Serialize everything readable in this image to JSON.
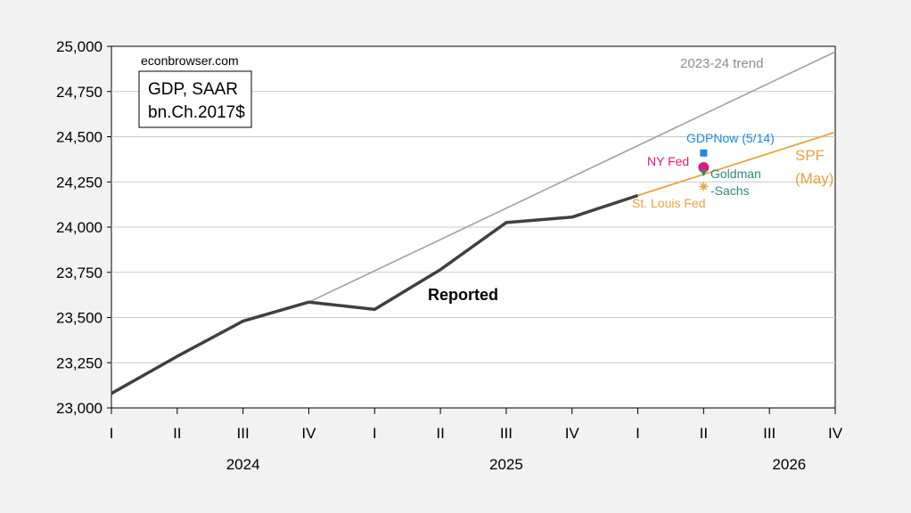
{
  "chart_data": {
    "type": "line",
    "source_note": "econbrowser.com",
    "legend_box": {
      "line1": "GDP, SAAR",
      "line2": "bn.Ch.2017$"
    },
    "ylim": [
      23000,
      25000
    ],
    "y_ticks": [
      23000,
      23250,
      23500,
      23750,
      24000,
      24250,
      24500,
      24750,
      25000
    ],
    "y_tick_labels": [
      "23,000",
      "23,250",
      "23,500",
      "23,750",
      "24,000",
      "24,250",
      "24,500",
      "24,750",
      "25,000"
    ],
    "x_ticks": [
      "I",
      "II",
      "III",
      "IV",
      "I",
      "II",
      "III",
      "IV",
      "I",
      "II",
      "III",
      "IV"
    ],
    "years": [
      {
        "label": "2024",
        "center": 2.0
      },
      {
        "label": "2025",
        "center": 6.0
      },
      {
        "label": "2026",
        "center": 10.3
      }
    ],
    "grid": true,
    "series": [
      {
        "name": "Reported",
        "color": "#404040",
        "x": [
          0,
          1,
          2,
          3,
          4,
          5,
          6,
          7,
          8
        ],
        "values": [
          23080,
          23285,
          23480,
          23585,
          23545,
          23765,
          24025,
          24055,
          24175
        ]
      },
      {
        "name": "2023-24 trend",
        "color": "#a0a0a0",
        "x": [
          3,
          11
        ],
        "values": [
          23585,
          24970
        ]
      },
      {
        "name": "SPF\n(May)",
        "color": "#e8a33d",
        "x": [
          8,
          11
        ],
        "values": [
          24175,
          24525
        ]
      }
    ],
    "points": [
      {
        "name": "GDPNow (5/14)",
        "x": 9,
        "value": 24410,
        "color": "#1e88e5",
        "marker": "square"
      },
      {
        "name": "NY Fed",
        "x": 9,
        "value": 24330,
        "color": "#e0197d",
        "marker": "circle"
      },
      {
        "name": "Goldman\n-Sachs",
        "x": 9,
        "value": 24300,
        "color": "#2a8a7a",
        "marker": "triangle"
      },
      {
        "name": "St. Louis Fed",
        "x": 9,
        "value": 24225,
        "color": "#e8a33d",
        "marker": "star"
      }
    ]
  }
}
